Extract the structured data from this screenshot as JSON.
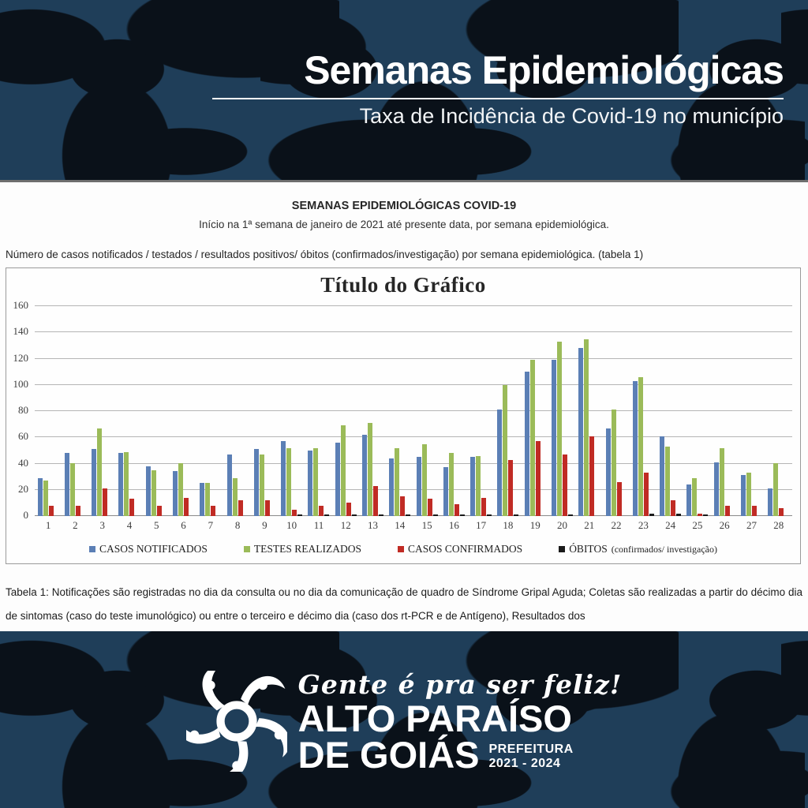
{
  "header": {
    "title": "Semanas Epidemiológicas",
    "subtitle": "Taxa de Incidência de Covid-19 no município"
  },
  "document": {
    "heading": "SEMANAS EPIDEMIOLÓGICAS COVID-19",
    "subheading": "Início na 1ª semana de janeiro de 2021 até presente data, por semana epidemiológica.",
    "intro_line": "Número de casos notificados / testados / resultados positivos/ óbitos (confirmados/investigação) por semana epidemiológica. (tabela 1)",
    "footnote": "Tabela 1: Notificações são registradas no dia da consulta ou no dia da comunicação de quadro de Síndrome Gripal Aguda; Coletas são realizadas a partir do décimo dia de sintomas (caso do teste imunológico) ou entre o terceiro e décimo dia (caso dos rt-PCR e de Antígeno), Resultados dos"
  },
  "chart_data": {
    "type": "bar",
    "title": "Título do Gráfico",
    "categories": [
      "1",
      "2",
      "3",
      "4",
      "5",
      "6",
      "7",
      "8",
      "9",
      "10",
      "11",
      "12",
      "13",
      "14",
      "15",
      "16",
      "17",
      "18",
      "19",
      "20",
      "21",
      "22",
      "23",
      "24",
      "25",
      "26",
      "27",
      "28"
    ],
    "series": [
      {
        "name": "CASOS NOTIFICADOS",
        "color": "#5b7fb5",
        "values": [
          29,
          48,
          51,
          48,
          38,
          34,
          25,
          47,
          51,
          57,
          50,
          56,
          62,
          44,
          45,
          37,
          45,
          81,
          110,
          119,
          128,
          67,
          103,
          61,
          24,
          41,
          31,
          21
        ]
      },
      {
        "name": "TESTES REALIZADOS",
        "color": "#9bbb59",
        "values": [
          27,
          40,
          67,
          49,
          35,
          40,
          25,
          29,
          47,
          52,
          52,
          69,
          71,
          52,
          55,
          48,
          46,
          100,
          119,
          133,
          135,
          81,
          106,
          53,
          29,
          52,
          33,
          40
        ]
      },
      {
        "name": "CASOS CONFIRMADOS",
        "color": "#c02b24",
        "values": [
          8,
          8,
          21,
          13,
          8,
          14,
          8,
          12,
          12,
          5,
          8,
          10,
          23,
          15,
          13,
          9,
          14,
          43,
          57,
          47,
          61,
          26,
          33,
          12,
          2,
          8,
          8,
          6
        ]
      },
      {
        "name": "ÓBITOS",
        "note": "(confirmados/ investigação)",
        "color": "#1a1a1a",
        "values": [
          0,
          0,
          0,
          0,
          0,
          0,
          0,
          0,
          0,
          1,
          1,
          1,
          1,
          1,
          1,
          1,
          1,
          1,
          0,
          1,
          0,
          0,
          2,
          2,
          1,
          0,
          0,
          0
        ]
      }
    ],
    "xlabel": "",
    "ylabel": "",
    "ylim": [
      0,
      160
    ],
    "ytick_step": 20,
    "grid": true,
    "legend_position": "bottom"
  },
  "footer": {
    "tagline": "Gente é pra ser feliz!",
    "brand_line1": "ALTO PARAÍSO",
    "brand_line2": "DE GOIÁS",
    "org": "PREFEITURA",
    "term": "2021 - 2024"
  }
}
